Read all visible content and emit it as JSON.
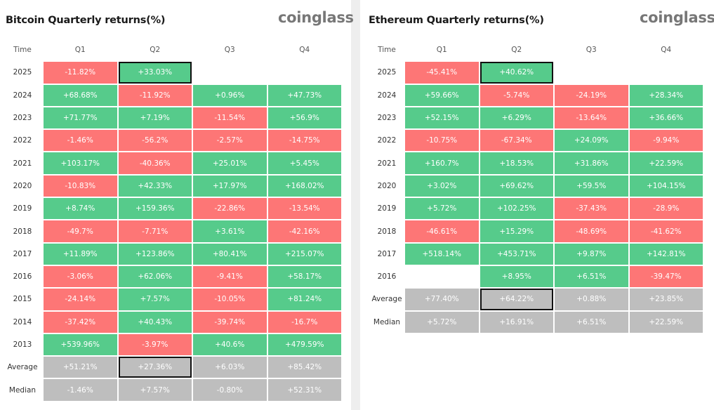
{
  "btc": {
    "title": "Bitcoin Quarterly returns(%)",
    "logo": "coinglass",
    "header": {
      "time": "Time",
      "quarters": [
        "Q1",
        "Q2",
        "Q3",
        "Q4"
      ]
    },
    "rows": [
      {
        "label": "2025",
        "values": [
          "-11.82%",
          "+33.03%",
          "",
          ""
        ]
      },
      {
        "label": "2024",
        "values": [
          "+68.68%",
          "-11.92%",
          "+0.96%",
          "+47.73%"
        ]
      },
      {
        "label": "2023",
        "values": [
          "+71.77%",
          "+7.19%",
          "-11.54%",
          "+56.9%"
        ]
      },
      {
        "label": "2022",
        "values": [
          "-1.46%",
          "-56.2%",
          "-2.57%",
          "-14.75%"
        ]
      },
      {
        "label": "2021",
        "values": [
          "+103.17%",
          "-40.36%",
          "+25.01%",
          "+5.45%"
        ]
      },
      {
        "label": "2020",
        "values": [
          "-10.83%",
          "+42.33%",
          "+17.97%",
          "+168.02%"
        ]
      },
      {
        "label": "2019",
        "values": [
          "+8.74%",
          "+159.36%",
          "-22.86%",
          "-13.54%"
        ]
      },
      {
        "label": "2018",
        "values": [
          "-49.7%",
          "-7.71%",
          "+3.61%",
          "-42.16%"
        ]
      },
      {
        "label": "2017",
        "values": [
          "+11.89%",
          "+123.86%",
          "+80.41%",
          "+215.07%"
        ]
      },
      {
        "label": "2016",
        "values": [
          "-3.06%",
          "+62.06%",
          "-9.41%",
          "+58.17%"
        ]
      },
      {
        "label": "2015",
        "values": [
          "-24.14%",
          "+7.57%",
          "-10.05%",
          "+81.24%"
        ]
      },
      {
        "label": "2014",
        "values": [
          "-37.42%",
          "+40.43%",
          "-39.74%",
          "-16.7%"
        ]
      },
      {
        "label": "2013",
        "values": [
          "+539.96%",
          "-3.97%",
          "+40.6%",
          "+479.59%"
        ]
      }
    ],
    "average": {
      "label": "Average",
      "values": [
        "+51.21%",
        "+27.36%",
        "+6.03%",
        "+85.42%"
      ]
    },
    "median": {
      "label": "Median",
      "values": [
        "-1.46%",
        "+7.57%",
        "-0.80%",
        "+52.31%"
      ]
    },
    "highlight_column": "Q2",
    "highlight_year": "2025"
  },
  "eth": {
    "title": "Ethereum Quarterly returns(%)",
    "logo": "coinglass",
    "header": {
      "time": "Time",
      "quarters": [
        "Q1",
        "Q2",
        "Q3",
        "Q4"
      ]
    },
    "rows": [
      {
        "label": "2025",
        "values": [
          "-45.41%",
          "+40.62%",
          "",
          ""
        ]
      },
      {
        "label": "2024",
        "values": [
          "+59.66%",
          "-5.74%",
          "-24.19%",
          "+28.34%"
        ]
      },
      {
        "label": "2023",
        "values": [
          "+52.15%",
          "+6.29%",
          "-13.64%",
          "+36.66%"
        ]
      },
      {
        "label": "2022",
        "values": [
          "-10.75%",
          "-67.34%",
          "+24.09%",
          "-9.94%"
        ]
      },
      {
        "label": "2021",
        "values": [
          "+160.7%",
          "+18.53%",
          "+31.86%",
          "+22.59%"
        ]
      },
      {
        "label": "2020",
        "values": [
          "+3.02%",
          "+69.62%",
          "+59.5%",
          "+104.15%"
        ]
      },
      {
        "label": "2019",
        "values": [
          "+5.72%",
          "+102.25%",
          "-37.43%",
          "-28.9%"
        ]
      },
      {
        "label": "2018",
        "values": [
          "-46.61%",
          "+15.29%",
          "-48.69%",
          "-41.62%"
        ]
      },
      {
        "label": "2017",
        "values": [
          "+518.14%",
          "+453.71%",
          "+9.87%",
          "+142.81%"
        ]
      },
      {
        "label": "2016",
        "values": [
          "",
          "+8.95%",
          "+6.51%",
          "-39.47%"
        ]
      }
    ],
    "average": {
      "label": "Average",
      "values": [
        "+77.40%",
        "+64.22%",
        "+0.88%",
        "+23.85%"
      ]
    },
    "median": {
      "label": "Median",
      "values": [
        "+5.72%",
        "+16.91%",
        "+6.51%",
        "+22.59%"
      ]
    },
    "highlight_column": "Q2",
    "highlight_year": "2025"
  },
  "colors": {
    "positive": "#56cb8b",
    "negative": "#fd7676",
    "summary": "#bebebe",
    "highlight_border": "#111111",
    "logo": "#777777"
  },
  "chart_data": [
    {
      "type": "table",
      "title": "Bitcoin Quarterly returns(%)",
      "columns": [
        "Time",
        "Q1",
        "Q2",
        "Q3",
        "Q4"
      ],
      "rows": [
        [
          "2025",
          -11.82,
          33.03,
          null,
          null
        ],
        [
          "2024",
          68.68,
          -11.92,
          0.96,
          47.73
        ],
        [
          "2023",
          71.77,
          7.19,
          -11.54,
          56.9
        ],
        [
          "2022",
          -1.46,
          -56.2,
          -2.57,
          -14.75
        ],
        [
          "2021",
          103.17,
          -40.36,
          25.01,
          5.45
        ],
        [
          "2020",
          -10.83,
          42.33,
          17.97,
          168.02
        ],
        [
          "2019",
          8.74,
          159.36,
          -22.86,
          -13.54
        ],
        [
          "2018",
          -49.7,
          -7.71,
          3.61,
          -42.16
        ],
        [
          "2017",
          11.89,
          123.86,
          80.41,
          215.07
        ],
        [
          "2016",
          -3.06,
          62.06,
          -9.41,
          58.17
        ],
        [
          "2015",
          -24.14,
          7.57,
          -10.05,
          81.24
        ],
        [
          "2014",
          -37.42,
          40.43,
          -39.74,
          -16.7
        ],
        [
          "2013",
          539.96,
          -3.97,
          40.6,
          479.59
        ],
        [
          "Average",
          51.21,
          27.36,
          6.03,
          85.42
        ],
        [
          "Median",
          -1.46,
          7.57,
          -0.8,
          52.31
        ]
      ]
    },
    {
      "type": "table",
      "title": "Ethereum Quarterly returns(%)",
      "columns": [
        "Time",
        "Q1",
        "Q2",
        "Q3",
        "Q4"
      ],
      "rows": [
        [
          "2025",
          -45.41,
          40.62,
          null,
          null
        ],
        [
          "2024",
          59.66,
          -5.74,
          -24.19,
          28.34
        ],
        [
          "2023",
          52.15,
          6.29,
          -13.64,
          36.66
        ],
        [
          "2022",
          -10.75,
          -67.34,
          24.09,
          -9.94
        ],
        [
          "2021",
          160.7,
          18.53,
          31.86,
          22.59
        ],
        [
          "2020",
          3.02,
          69.62,
          59.5,
          104.15
        ],
        [
          "2019",
          5.72,
          102.25,
          -37.43,
          -28.9
        ],
        [
          "2018",
          -46.61,
          15.29,
          -48.69,
          -41.62
        ],
        [
          "2017",
          518.14,
          453.71,
          9.87,
          142.81
        ],
        [
          "2016",
          null,
          8.95,
          6.51,
          -39.47
        ],
        [
          "Average",
          77.4,
          64.22,
          0.88,
          23.85
        ],
        [
          "Median",
          5.72,
          16.91,
          6.51,
          22.59
        ]
      ]
    }
  ]
}
